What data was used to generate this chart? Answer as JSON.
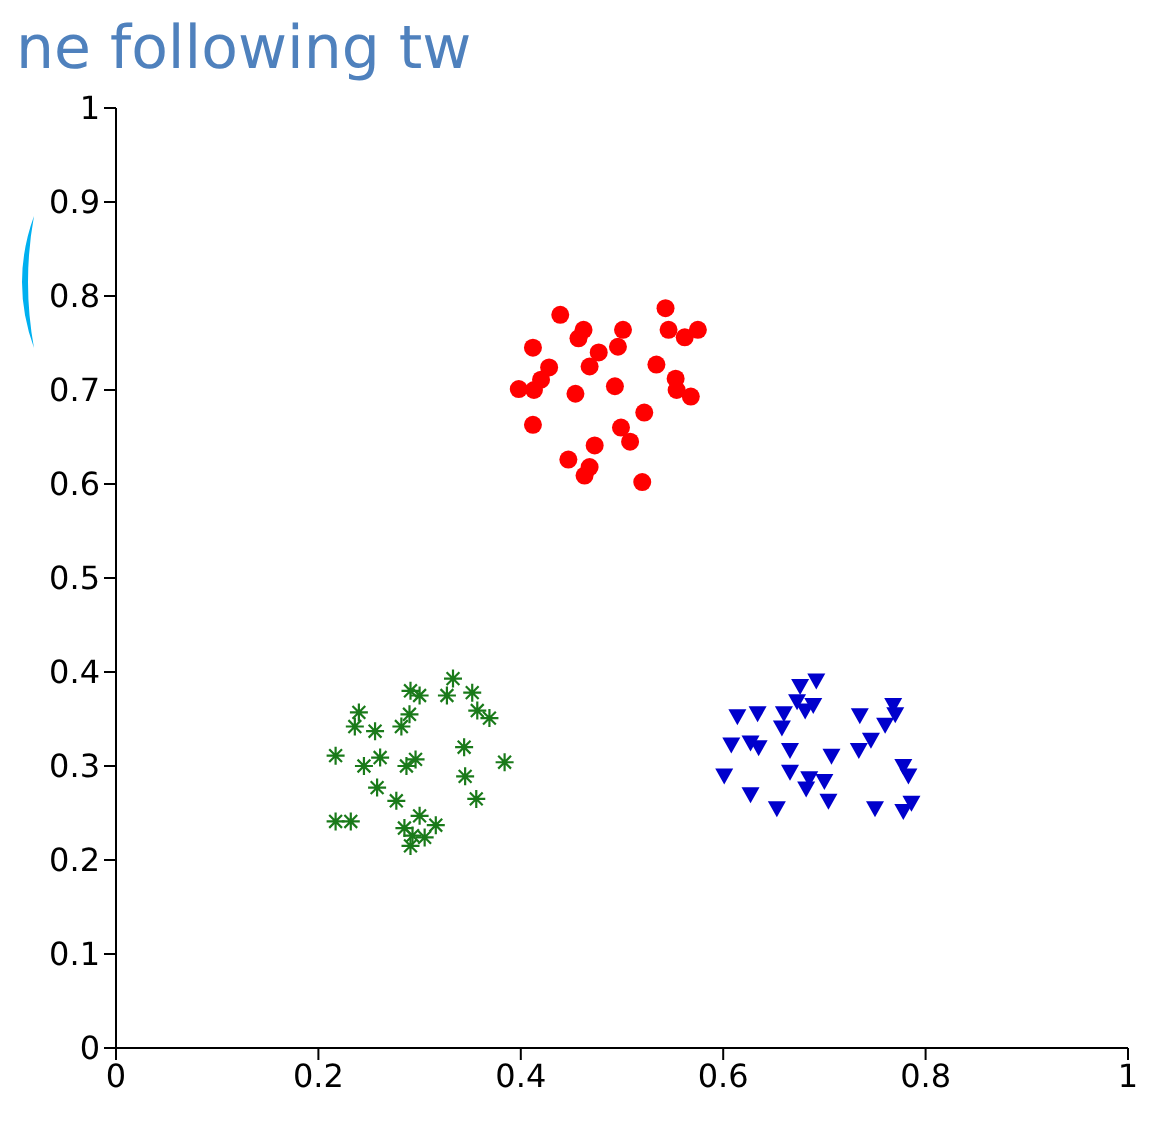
{
  "chart_data": {
    "type": "scatter",
    "annotations": [
      "ne following tw"
    ],
    "xlim": [
      0,
      1
    ],
    "ylim": [
      0,
      1
    ],
    "xticks": [
      0,
      0.2,
      0.4,
      0.6,
      0.8,
      1
    ],
    "yticks": [
      0,
      0.1,
      0.2,
      0.3,
      0.4,
      0.5,
      0.6,
      0.7,
      0.8,
      0.9,
      1
    ],
    "grid": false,
    "series": [
      {
        "color": "#ff0000",
        "marker": "circle",
        "x": [
          0.439,
          0.462,
          0.457,
          0.501,
          0.496,
          0.543,
          0.546,
          0.562,
          0.575,
          0.412,
          0.428,
          0.477,
          0.468,
          0.534,
          0.42,
          0.398,
          0.413,
          0.454,
          0.493,
          0.553,
          0.554,
          0.568,
          0.412,
          0.522,
          0.499,
          0.508,
          0.473,
          0.447,
          0.468,
          0.463,
          0.52
        ],
        "values": [
          0.78,
          0.764,
          0.755,
          0.764,
          0.746,
          0.787,
          0.764,
          0.756,
          0.764,
          0.745,
          0.724,
          0.74,
          0.725,
          0.727,
          0.711,
          0.701,
          0.7,
          0.696,
          0.704,
          0.712,
          0.7,
          0.693,
          0.663,
          0.676,
          0.66,
          0.645,
          0.641,
          0.626,
          0.618,
          0.609,
          0.602
        ]
      },
      {
        "color": "#1a7a1a",
        "marker": "cross",
        "x": [
          0.333,
          0.327,
          0.352,
          0.291,
          0.3,
          0.24,
          0.236,
          0.256,
          0.29,
          0.282,
          0.357,
          0.369,
          0.217,
          0.245,
          0.261,
          0.287,
          0.296,
          0.344,
          0.384,
          0.258,
          0.345,
          0.277,
          0.356,
          0.217,
          0.232,
          0.3,
          0.285,
          0.316,
          0.293,
          0.305,
          0.291
        ],
        "values": [
          0.393,
          0.375,
          0.378,
          0.38,
          0.375,
          0.357,
          0.342,
          0.337,
          0.355,
          0.342,
          0.359,
          0.351,
          0.311,
          0.3,
          0.309,
          0.3,
          0.307,
          0.32,
          0.304,
          0.277,
          0.289,
          0.263,
          0.265,
          0.241,
          0.241,
          0.247,
          0.234,
          0.237,
          0.226,
          0.224,
          0.215
        ]
      },
      {
        "color": "#0000cc",
        "marker": "triangle",
        "x": [
          0.676,
          0.692,
          0.673,
          0.689,
          0.681,
          0.614,
          0.634,
          0.66,
          0.658,
          0.735,
          0.768,
          0.77,
          0.76,
          0.608,
          0.627,
          0.635,
          0.666,
          0.746,
          0.734,
          0.707,
          0.601,
          0.666,
          0.685,
          0.7,
          0.682,
          0.778,
          0.783,
          0.627,
          0.653,
          0.704,
          0.75,
          0.778,
          0.786
        ],
        "values": [
          0.385,
          0.391,
          0.369,
          0.365,
          0.359,
          0.353,
          0.356,
          0.356,
          0.341,
          0.354,
          0.365,
          0.355,
          0.344,
          0.323,
          0.325,
          0.32,
          0.317,
          0.328,
          0.317,
          0.311,
          0.29,
          0.294,
          0.287,
          0.284,
          0.276,
          0.3,
          0.29,
          0.27,
          0.255,
          0.263,
          0.255,
          0.252,
          0.261
        ]
      }
    ]
  }
}
